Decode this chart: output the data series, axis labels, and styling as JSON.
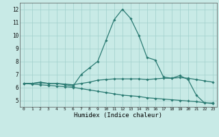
{
  "xlabel": "Humidex (Indice chaleur)",
  "xlim": [
    -0.5,
    23.5
  ],
  "ylim": [
    4.5,
    12.5
  ],
  "yticks": [
    5,
    6,
    7,
    8,
    9,
    10,
    11,
    12
  ],
  "xticks": [
    0,
    1,
    2,
    3,
    4,
    5,
    6,
    7,
    8,
    9,
    10,
    11,
    12,
    13,
    14,
    15,
    16,
    17,
    18,
    19,
    20,
    21,
    22,
    23
  ],
  "background_color": "#c8eae6",
  "grid_color": "#a0d0cc",
  "line_color": "#2a7a72",
  "series": [
    {
      "x": [
        0,
        1,
        2,
        3,
        4,
        5,
        6,
        7,
        8,
        9,
        10,
        11,
        12,
        13,
        14,
        15,
        16,
        17,
        18,
        19,
        20,
        21,
        22,
        23
      ],
      "y": [
        6.3,
        6.3,
        6.4,
        6.3,
        6.3,
        6.2,
        6.1,
        7.0,
        7.5,
        8.0,
        9.6,
        11.2,
        12.0,
        11.3,
        10.0,
        8.3,
        8.1,
        6.8,
        6.7,
        6.9,
        6.6,
        5.4,
        4.8,
        4.8
      ]
    },
    {
      "x": [
        0,
        1,
        2,
        3,
        4,
        5,
        6,
        7,
        8,
        9,
        10,
        11,
        12,
        13,
        14,
        15,
        16,
        17,
        18,
        19,
        20,
        21,
        22,
        23
      ],
      "y": [
        6.3,
        6.3,
        6.35,
        6.3,
        6.3,
        6.25,
        6.2,
        6.3,
        6.4,
        6.55,
        6.6,
        6.65,
        6.65,
        6.65,
        6.65,
        6.6,
        6.65,
        6.7,
        6.7,
        6.75,
        6.7,
        6.6,
        6.5,
        6.4
      ]
    },
    {
      "x": [
        0,
        1,
        2,
        3,
        4,
        5,
        6,
        7,
        8,
        9,
        10,
        11,
        12,
        13,
        14,
        15,
        16,
        17,
        18,
        19,
        20,
        21,
        22,
        23
      ],
      "y": [
        6.3,
        6.25,
        6.2,
        6.15,
        6.1,
        6.05,
        6.0,
        5.9,
        5.8,
        5.7,
        5.6,
        5.5,
        5.4,
        5.35,
        5.3,
        5.2,
        5.15,
        5.1,
        5.05,
        5.0,
        4.95,
        4.9,
        4.82,
        4.75
      ]
    }
  ]
}
